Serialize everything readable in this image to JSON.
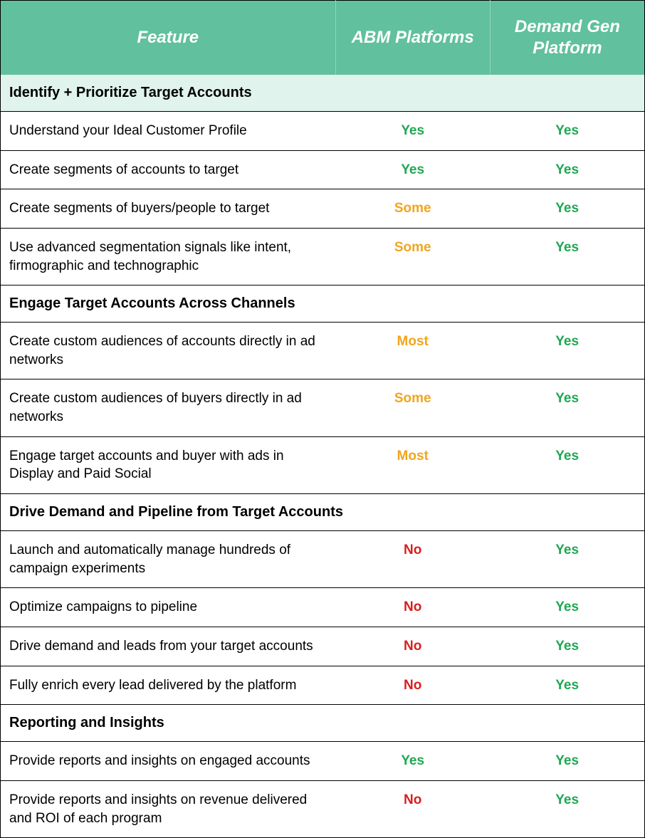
{
  "colors": {
    "header_bg": "#61c09e",
    "header_text": "#ffffff",
    "section_bg": "#e0f3ec",
    "yes": "#1ea853",
    "no": "#d81e1e",
    "partial": "#f0a61e",
    "border": "#000000",
    "row_bg": "#ffffff"
  },
  "fonts": {
    "header_size_pt": 18,
    "section_size_pt": 15,
    "cell_size_pt": 14
  },
  "header": {
    "feature": "Feature",
    "col1": "ABM Platforms",
    "col2": "Demand Gen Platform"
  },
  "sections": [
    {
      "title": "Identify + Prioritize Target Accounts",
      "tinted": true,
      "rows": [
        {
          "feature": "Understand your Ideal Customer Profile",
          "abm": {
            "text": "Yes",
            "kind": "yes"
          },
          "dg": {
            "text": "Yes",
            "kind": "yes"
          }
        },
        {
          "feature": "Create segments of accounts to target",
          "abm": {
            "text": "Yes",
            "kind": "yes"
          },
          "dg": {
            "text": "Yes",
            "kind": "yes"
          }
        },
        {
          "feature": "Create segments of buyers/people to target",
          "abm": {
            "text": "Some",
            "kind": "partial"
          },
          "dg": {
            "text": "Yes",
            "kind": "yes"
          }
        },
        {
          "feature": "Use advanced segmentation signals like intent, firmographic and technographic",
          "abm": {
            "text": "Some",
            "kind": "partial"
          },
          "dg": {
            "text": "Yes",
            "kind": "yes"
          }
        }
      ]
    },
    {
      "title": "Engage Target Accounts Across Channels",
      "tinted": false,
      "rows": [
        {
          "feature": "Create custom audiences of accounts directly in ad networks",
          "abm": {
            "text": "Most",
            "kind": "partial"
          },
          "dg": {
            "text": "Yes",
            "kind": "yes"
          }
        },
        {
          "feature": "Create custom audiences of buyers directly in ad networks",
          "abm": {
            "text": "Some",
            "kind": "partial"
          },
          "dg": {
            "text": "Yes",
            "kind": "yes"
          }
        },
        {
          "feature": "Engage target accounts and buyer with ads in Display and Paid Social",
          "abm": {
            "text": "Most",
            "kind": "partial"
          },
          "dg": {
            "text": "Yes",
            "kind": "yes"
          }
        }
      ]
    },
    {
      "title": "Drive Demand and Pipeline from Target Accounts",
      "tinted": false,
      "rows": [
        {
          "feature": "Launch and automatically manage hundreds of campaign experiments",
          "abm": {
            "text": "No",
            "kind": "no"
          },
          "dg": {
            "text": "Yes",
            "kind": "yes"
          }
        },
        {
          "feature": "Optimize campaigns to pipeline",
          "abm": {
            "text": "No",
            "kind": "no"
          },
          "dg": {
            "text": "Yes",
            "kind": "yes"
          }
        },
        {
          "feature": "Drive demand and leads from your target accounts",
          "abm": {
            "text": "No",
            "kind": "no"
          },
          "dg": {
            "text": "Yes",
            "kind": "yes"
          }
        },
        {
          "feature": "Fully enrich every lead delivered by the platform",
          "abm": {
            "text": "No",
            "kind": "no"
          },
          "dg": {
            "text": "Yes",
            "kind": "yes"
          }
        }
      ]
    },
    {
      "title": "Reporting and Insights",
      "tinted": false,
      "rows": [
        {
          "feature": "Provide reports and insights on engaged accounts",
          "abm": {
            "text": "Yes",
            "kind": "yes"
          },
          "dg": {
            "text": "Yes",
            "kind": "yes"
          }
        },
        {
          "feature": "Provide reports and insights on revenue delivered and ROI of each program",
          "abm": {
            "text": "No",
            "kind": "no"
          },
          "dg": {
            "text": "Yes",
            "kind": "yes"
          }
        }
      ]
    }
  ]
}
